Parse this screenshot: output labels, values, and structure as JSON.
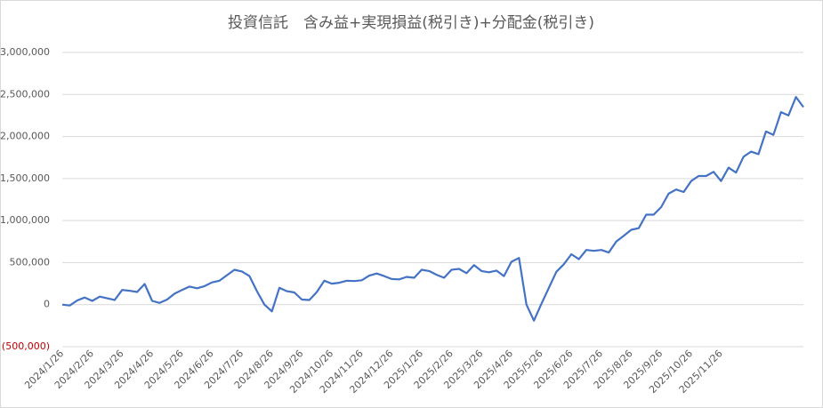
{
  "chart_data": {
    "type": "line",
    "title": "投資信託　含み益+実現損益(税引き)+分配金(税引き)",
    "categories": [
      "2024/1/26",
      null,
      null,
      null,
      "2024/2/26",
      null,
      null,
      null,
      "2024/3/26",
      null,
      null,
      null,
      "2024/4/26",
      null,
      null,
      null,
      "2024/5/26",
      null,
      null,
      null,
      "2024/6/26",
      null,
      null,
      null,
      "2024/7/26",
      null,
      null,
      null,
      "2024/8/26",
      null,
      null,
      null,
      "2024/9/26",
      null,
      null,
      null,
      "2024/10/26",
      null,
      null,
      null,
      "2024/11/26",
      null,
      null,
      null,
      "2024/12/26",
      null,
      null,
      null,
      "2025/1/26",
      null,
      null,
      null,
      "2025/2/26",
      null,
      null,
      null,
      "2025/3/26",
      null,
      null,
      null,
      "2025/4/26",
      null,
      null,
      null,
      "2025/5/26",
      null,
      null,
      null,
      "2025/6/26",
      null,
      null,
      null,
      "2025/7/26",
      null,
      null,
      null,
      "2025/8/26",
      null,
      null,
      null,
      "2025/9/26",
      null,
      null,
      null,
      "2025/10/26",
      null,
      null,
      null,
      "2025/11/26",
      null,
      null,
      null,
      null,
      null,
      null,
      null,
      null,
      null,
      null,
      null
    ],
    "values": [
      0,
      -10000,
      50000,
      85000,
      45000,
      95000,
      75000,
      55000,
      175000,
      165000,
      150000,
      245000,
      45000,
      20000,
      60000,
      130000,
      175000,
      215000,
      195000,
      220000,
      265000,
      285000,
      350000,
      415000,
      395000,
      340000,
      160000,
      0,
      -80000,
      200000,
      160000,
      145000,
      60000,
      55000,
      150000,
      285000,
      250000,
      260000,
      285000,
      280000,
      290000,
      345000,
      370000,
      340000,
      305000,
      300000,
      330000,
      320000,
      415000,
      400000,
      355000,
      320000,
      415000,
      425000,
      375000,
      470000,
      400000,
      385000,
      405000,
      340000,
      510000,
      555000,
      0,
      -190000,
      10000,
      200000,
      390000,
      480000,
      600000,
      540000,
      650000,
      640000,
      650000,
      620000,
      750000,
      820000,
      890000,
      910000,
      1070000,
      1070000,
      1160000,
      1320000,
      1370000,
      1340000,
      1470000,
      1530000,
      1530000,
      1580000,
      1470000,
      1630000,
      1570000,
      1760000,
      1820000,
      1790000,
      2060000,
      2020000,
      2290000,
      2250000,
      2470000,
      2350000
    ],
    "color": "#4472c4",
    "ylim": [
      -500000,
      3000000
    ],
    "yticks": [
      {
        "value": -500000,
        "label": "(500,000)"
      },
      0,
      {
        "value": 500000,
        "label": "500,000"
      },
      {
        "value": 1000000,
        "label": "1,000,000"
      },
      {
        "value": 1500000,
        "label": "1,500,000"
      },
      {
        "value": 2000000,
        "label": "2,000,000"
      },
      {
        "value": 2500000,
        "label": "2,500,000"
      },
      {
        "value": 3000000,
        "label": "3,000,000"
      }
    ],
    "negative_tick_color": "#c00000",
    "grid": true
  }
}
